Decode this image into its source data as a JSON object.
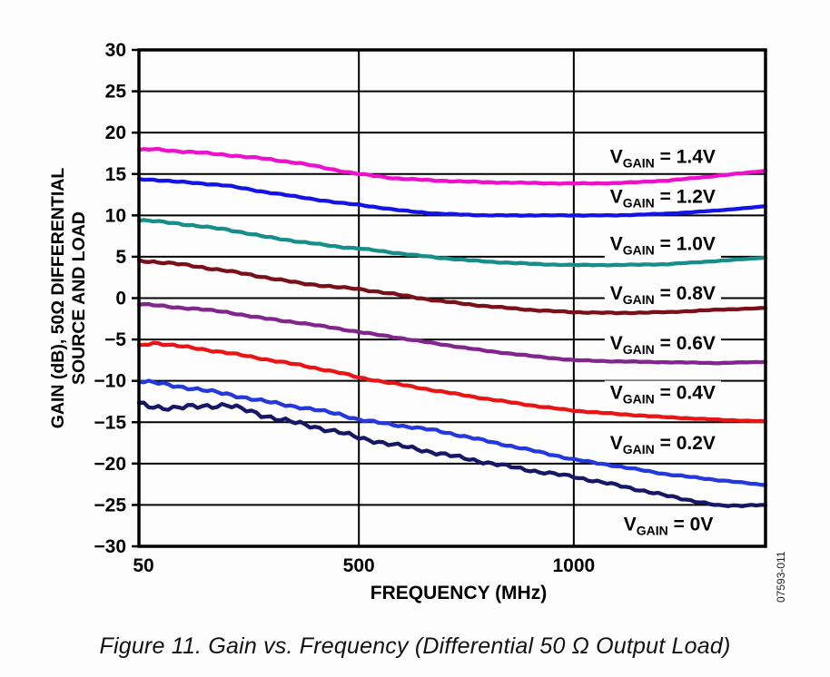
{
  "figure": {
    "caption": "Figure 11. Gain vs. Frequency (Differential 50 Ω  Output Load)",
    "watermark_code": "07593-011"
  },
  "chart_data": {
    "type": "line",
    "title": "",
    "xlabel": "FREQUENCY (MHz)",
    "ylabel": "GAIN (dB), 50Ω DIFFERENTIAL SOURCE AND LOAD",
    "ylabel_lines": [
      "GAIN (dB), 50Ω DIFFERENTIAL",
      "SOURCE AND LOAD"
    ],
    "xlim": [
      50,
      1450
    ],
    "ylim": [
      -30,
      30
    ],
    "x_ticks": [
      50,
      500,
      1000
    ],
    "y_ticks": [
      30,
      25,
      20,
      15,
      10,
      5,
      0,
      -5,
      -10,
      -15,
      -20,
      -25,
      -30
    ],
    "grid": true,
    "legend_position": "inline-right",
    "x_breakpoints": [
      [
        50,
        0
      ],
      [
        500,
        0.351
      ],
      [
        1000,
        0.694
      ],
      [
        1450,
        1.0
      ]
    ],
    "frequencies_mhz": [
      50,
      80,
      120,
      170,
      230,
      300,
      380,
      460,
      500,
      580,
      680,
      800,
      920,
      1000,
      1100,
      1220,
      1340,
      1450
    ],
    "series": [
      {
        "vgain": "1.4V",
        "label_prefix": "V",
        "label_sub": "GAIN",
        "label_rest": " = 1.4V",
        "color": "#ee11cc",
        "noise": 0.08,
        "label_anchor": {
          "t": 0.836,
          "g": 17.2
        },
        "gains_db": [
          17.9,
          18.0,
          17.8,
          17.6,
          17.3,
          16.9,
          16.3,
          15.4,
          15.0,
          14.5,
          14.2,
          14.0,
          13.9,
          13.85,
          13.9,
          14.2,
          14.8,
          15.4
        ]
      },
      {
        "vgain": "1.2V",
        "label_prefix": "V",
        "label_sub": "GAIN",
        "label_rest": " = 1.2V",
        "color": "#1414e6",
        "noise": 0.06,
        "label_anchor": {
          "t": 0.836,
          "g": 12.4
        },
        "gains_db": [
          14.4,
          14.3,
          14.1,
          13.9,
          13.6,
          12.9,
          12.2,
          11.5,
          11.3,
          10.7,
          10.2,
          10.0,
          10.0,
          10.0,
          10.0,
          10.2,
          10.6,
          11.1
        ]
      },
      {
        "vgain": "1.0V",
        "label_prefix": "V",
        "label_sub": "GAIN",
        "label_rest": " = 1.0V",
        "color": "#178e8a",
        "noise": 0.08,
        "label_anchor": {
          "t": 0.836,
          "g": 6.7
        },
        "gains_db": [
          9.4,
          9.3,
          9.1,
          8.7,
          8.3,
          7.5,
          6.8,
          6.2,
          6.0,
          5.5,
          4.9,
          4.4,
          4.1,
          4.0,
          4.0,
          4.1,
          4.5,
          4.9
        ]
      },
      {
        "vgain": "0.8V",
        "label_prefix": "V",
        "label_sub": "GAIN",
        "label_rest": " = 0.8V",
        "color": "#7a1119",
        "noise": 0.1,
        "label_anchor": {
          "t": 0.836,
          "g": 0.7
        },
        "gains_db": [
          4.5,
          4.4,
          4.2,
          3.8,
          3.3,
          2.6,
          1.8,
          1.3,
          1.1,
          0.5,
          -0.3,
          -1.0,
          -1.5,
          -1.7,
          -1.8,
          -1.7,
          -1.4,
          -1.2
        ]
      },
      {
        "vgain": "0.6V",
        "label_prefix": "V",
        "label_sub": "GAIN",
        "label_rest": " = 0.6V",
        "color": "#80268c",
        "noise": 0.08,
        "label_anchor": {
          "t": 0.836,
          "g": -5.3
        },
        "gains_db": [
          -0.7,
          -0.85,
          -1.1,
          -1.3,
          -1.7,
          -2.4,
          -3.0,
          -3.7,
          -4.1,
          -4.7,
          -5.5,
          -6.4,
          -7.1,
          -7.5,
          -7.65,
          -7.75,
          -7.85,
          -7.7
        ]
      },
      {
        "vgain": "0.4V",
        "label_prefix": "V",
        "label_sub": "GAIN",
        "label_rest": " = 0.4V",
        "color": "#e91515",
        "noise": 0.1,
        "label_anchor": {
          "t": 0.836,
          "g": -11.3
        },
        "gains_db": [
          -5.8,
          -5.4,
          -5.7,
          -6.1,
          -6.6,
          -7.3,
          -8.1,
          -9.0,
          -9.6,
          -10.3,
          -11.2,
          -12.2,
          -13.1,
          -13.6,
          -14.0,
          -14.4,
          -14.7,
          -14.9
        ]
      },
      {
        "vgain": "0.2V",
        "label_prefix": "V",
        "label_sub": "GAIN",
        "label_rest": " = 0.2V",
        "color": "#2438db",
        "noise": 0.16,
        "label_anchor": {
          "t": 0.836,
          "g": -17.4
        },
        "gains_db": [
          -10.0,
          -10.2,
          -10.6,
          -11.0,
          -11.6,
          -12.4,
          -13.2,
          -14.0,
          -14.7,
          -15.3,
          -16.0,
          -17.3,
          -18.6,
          -19.5,
          -20.3,
          -21.3,
          -22.0,
          -22.6
        ]
      },
      {
        "vgain": "0V",
        "label_prefix": "V",
        "label_sub": "GAIN",
        "label_rest": " = 0V",
        "color": "#171768",
        "noise": 0.28,
        "label_anchor": {
          "t": 0.845,
          "g": -27.2
        },
        "gains_db": [
          -12.8,
          -13.1,
          -13.3,
          -13.1,
          -12.9,
          -14.1,
          -15.2,
          -16.2,
          -16.9,
          -17.7,
          -18.7,
          -19.9,
          -21.0,
          -21.6,
          -22.6,
          -23.9,
          -25.1,
          -25.0
        ]
      }
    ]
  }
}
